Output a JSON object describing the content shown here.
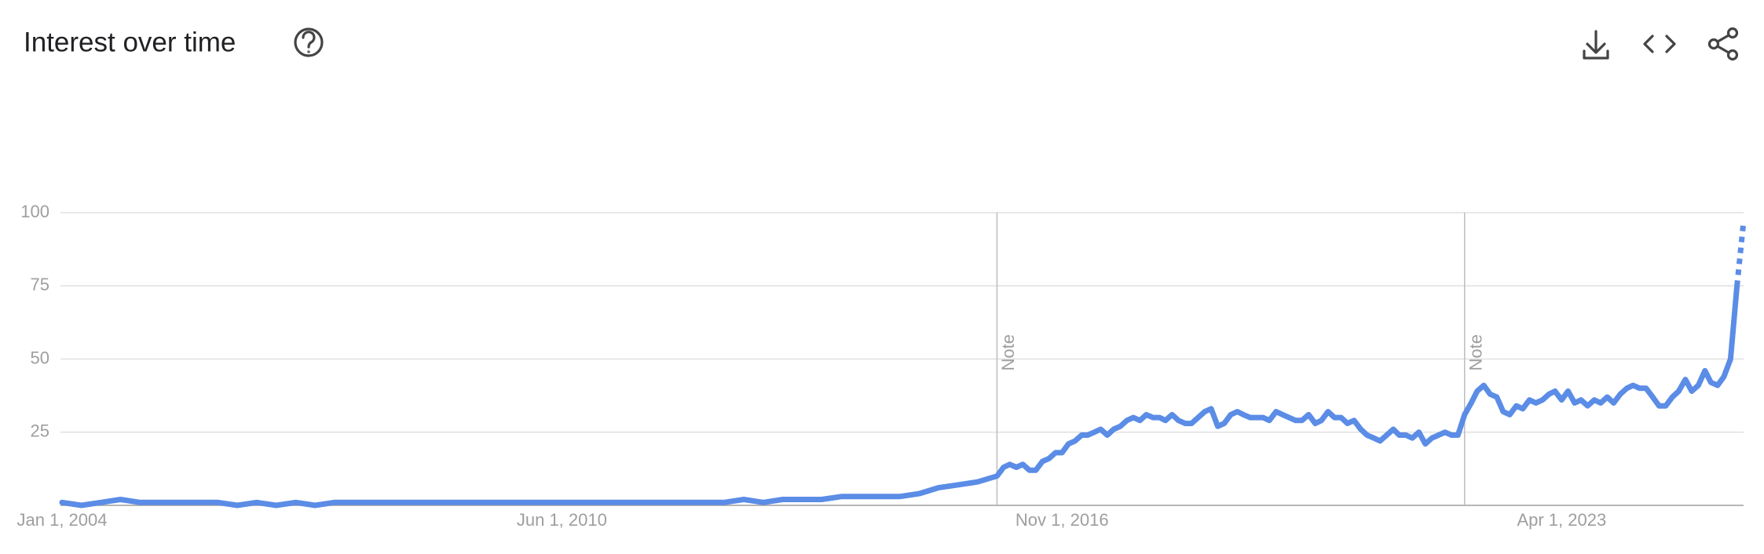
{
  "chart_data": {
    "type": "line",
    "title": "Interest over time",
    "color": "#5b8ce6",
    "grid": true,
    "partial_last_point": true,
    "x": [
      "2004-01-01",
      "2004-04-01",
      "2004-07-01",
      "2004-10-01",
      "2005-01-01",
      "2005-04-01",
      "2005-07-01",
      "2005-10-01",
      "2006-01-01",
      "2006-04-01",
      "2006-07-01",
      "2006-10-01",
      "2007-01-01",
      "2007-04-01",
      "2007-07-01",
      "2007-10-01",
      "2008-01-01",
      "2008-04-01",
      "2008-07-01",
      "2008-10-01",
      "2009-01-01",
      "2009-04-01",
      "2009-07-01",
      "2009-10-01",
      "2010-01-01",
      "2010-04-01",
      "2010-07-01",
      "2010-10-01",
      "2011-01-01",
      "2011-04-01",
      "2011-07-01",
      "2011-10-01",
      "2012-01-01",
      "2012-04-01",
      "2012-07-01",
      "2012-10-01",
      "2013-01-01",
      "2013-04-01",
      "2013-07-01",
      "2013-10-01",
      "2014-01-01",
      "2014-04-01",
      "2014-07-01",
      "2014-10-01",
      "2015-01-01",
      "2015-04-01",
      "2015-07-01",
      "2015-10-01",
      "2016-01-01",
      "2016-02-01",
      "2016-03-01",
      "2016-04-01",
      "2016-05-01",
      "2016-06-01",
      "2016-07-01",
      "2016-08-01",
      "2016-09-01",
      "2016-10-01",
      "2016-11-01",
      "2016-12-01",
      "2017-01-01",
      "2017-02-01",
      "2017-03-01",
      "2017-04-01",
      "2017-05-01",
      "2017-06-01",
      "2017-07-01",
      "2017-08-01",
      "2017-09-01",
      "2017-10-01",
      "2017-11-01",
      "2017-12-01",
      "2018-01-01",
      "2018-02-01",
      "2018-03-01",
      "2018-04-01",
      "2018-05-01",
      "2018-06-01",
      "2018-07-01",
      "2018-08-01",
      "2018-09-01",
      "2018-10-01",
      "2018-11-01",
      "2018-12-01",
      "2019-01-01",
      "2019-02-01",
      "2019-03-01",
      "2019-04-01",
      "2019-05-01",
      "2019-06-01",
      "2019-07-01",
      "2019-08-01",
      "2019-09-01",
      "2019-10-01",
      "2019-11-01",
      "2019-12-01",
      "2020-01-01",
      "2020-02-01",
      "2020-03-01",
      "2020-04-01",
      "2020-05-01",
      "2020-06-01",
      "2020-07-01",
      "2020-08-01",
      "2020-09-01",
      "2020-10-01",
      "2020-11-01",
      "2020-12-01",
      "2021-01-01",
      "2021-02-01",
      "2021-03-01",
      "2021-04-01",
      "2021-05-01",
      "2021-06-01",
      "2021-07-01",
      "2021-08-01",
      "2021-09-01",
      "2021-10-01",
      "2021-11-01",
      "2021-12-01",
      "2022-01-01",
      "2022-02-01",
      "2022-03-01",
      "2022-04-01",
      "2022-05-01",
      "2022-06-01",
      "2022-07-01",
      "2022-08-01",
      "2022-09-01",
      "2022-10-01",
      "2022-11-01",
      "2022-12-01",
      "2023-01-01",
      "2023-02-01",
      "2023-03-01",
      "2023-04-01",
      "2023-05-01",
      "2023-06-01",
      "2023-07-01",
      "2023-08-01",
      "2023-09-01",
      "2023-10-01",
      "2023-11-01",
      "2023-12-01",
      "2024-01-01",
      "2024-02-01",
      "2024-03-01",
      "2024-04-01",
      "2024-05-01",
      "2024-06-01",
      "2024-07-01",
      "2024-08-01",
      "2024-09-01",
      "2024-10-01",
      "2024-11-01",
      "2024-12-01",
      "2025-01-01",
      "2025-02-01",
      "2025-03-01",
      "2025-04-01",
      "2025-05-01",
      "2025-06-01",
      "2025-07-01",
      "2025-08-01"
    ],
    "values": [
      1,
      0,
      1,
      2,
      1,
      1,
      1,
      1,
      1,
      0,
      1,
      0,
      1,
      0,
      1,
      1,
      1,
      1,
      1,
      1,
      1,
      1,
      1,
      1,
      1,
      1,
      1,
      1,
      1,
      1,
      1,
      1,
      1,
      1,
      1,
      2,
      1,
      2,
      2,
      2,
      3,
      3,
      3,
      3,
      4,
      6,
      7,
      8,
      10,
      13,
      14,
      13,
      14,
      12,
      12,
      15,
      16,
      18,
      18,
      21,
      22,
      24,
      24,
      25,
      26,
      24,
      26,
      27,
      29,
      30,
      29,
      31,
      30,
      30,
      29,
      31,
      29,
      28,
      28,
      30,
      32,
      33,
      27,
      28,
      31,
      32,
      31,
      30,
      30,
      30,
      29,
      32,
      31,
      30,
      29,
      29,
      31,
      28,
      29,
      32,
      30,
      30,
      28,
      29,
      26,
      24,
      23,
      22,
      24,
      26,
      24,
      24,
      23,
      25,
      21,
      23,
      24,
      25,
      24,
      24,
      31,
      35,
      39,
      41,
      38,
      37,
      32,
      31,
      34,
      33,
      36,
      35,
      36,
      38,
      39,
      36,
      39,
      35,
      36,
      34,
      36,
      35,
      37,
      35,
      38,
      40,
      41,
      40,
      40,
      37,
      34,
      34,
      37,
      39,
      43,
      39,
      41,
      46,
      42,
      41,
      44,
      50,
      75,
      97
    ],
    "xlim": [
      "2004-01-01",
      "2025-08-01"
    ],
    "xticks": [
      {
        "value": "2004-01-01",
        "label": "Jan 1, 2004"
      },
      {
        "value": "2010-06-01",
        "label": "Jun 1, 2010"
      },
      {
        "value": "2016-11-01",
        "label": "Nov 1, 2016"
      },
      {
        "value": "2023-04-01",
        "label": "Apr 1, 2023"
      }
    ],
    "ylim": [
      0,
      100
    ],
    "yticks": [
      25,
      50,
      75,
      100
    ],
    "annotations": [
      {
        "x": "2016-01-01",
        "label": "Note"
      },
      {
        "x": "2022-01-01",
        "label": "Note"
      }
    ]
  }
}
